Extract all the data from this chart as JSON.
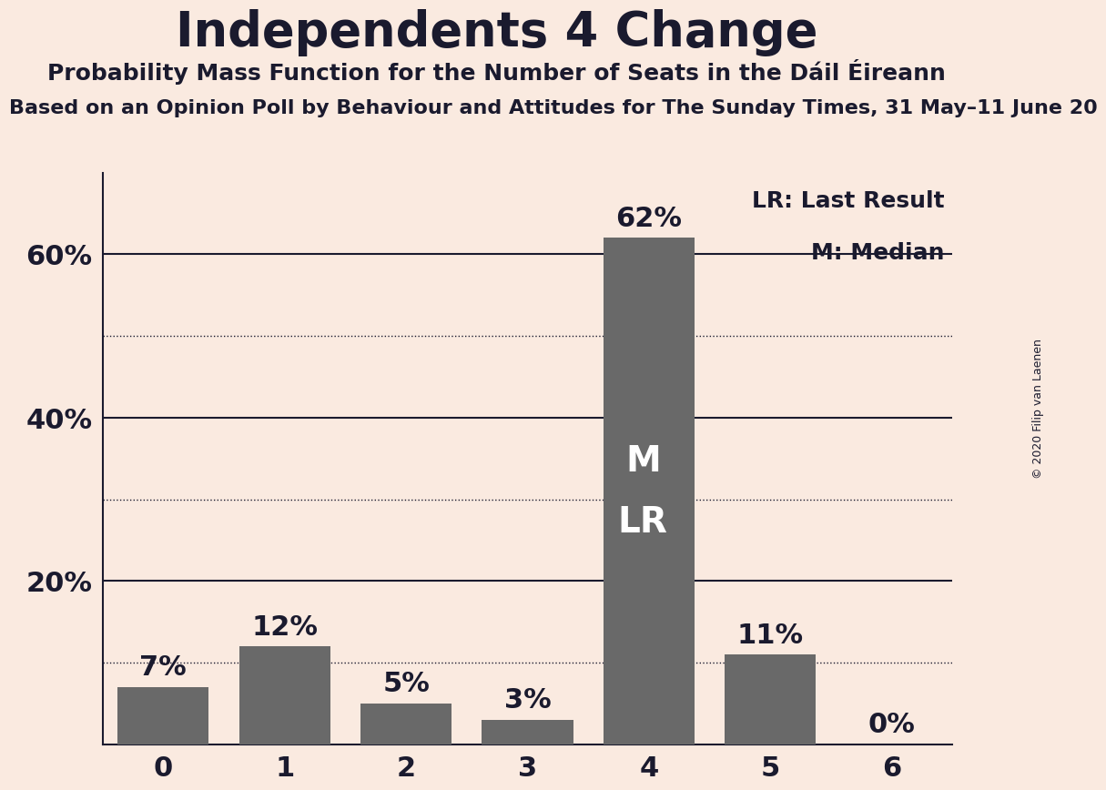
{
  "title": "Independents 4 Change",
  "subtitle": "Probability Mass Function for the Number of Seats in the Dáil Éireann",
  "sub2": "Based on an Opinion Poll by Behaviour and Attitudes for The Sunday Times, 31 May–11 June 20",
  "copyright": "© 2020 Filip van Laenen",
  "categories": [
    0,
    1,
    2,
    3,
    4,
    5,
    6
  ],
  "values": [
    7,
    12,
    5,
    3,
    62,
    11,
    0
  ],
  "bar_color": "#696969",
  "background_color": "#faeae0",
  "label_color": "#1a1a2e",
  "bar_label_color": "#1a1a2e",
  "bar_label_inside_color": "#ffffff",
  "median_bar": 4,
  "last_result_bar": 4,
  "legend_lr": "LR: Last Result",
  "legend_m": "M: Median",
  "ylim": [
    0,
    70
  ],
  "grid_ticks_dotted": [
    10,
    30,
    50
  ],
  "grid_ticks_solid": [
    20,
    40,
    60
  ],
  "xlim": [
    -0.5,
    6.5
  ],
  "bar_width": 0.75,
  "title_fontsize": 38,
  "subtitle_fontsize": 18,
  "sub2_fontsize": 16,
  "bar_label_fontsize": 22,
  "tick_label_fontsize": 22,
  "legend_fontsize": 18,
  "inside_label_fontsize": 28
}
